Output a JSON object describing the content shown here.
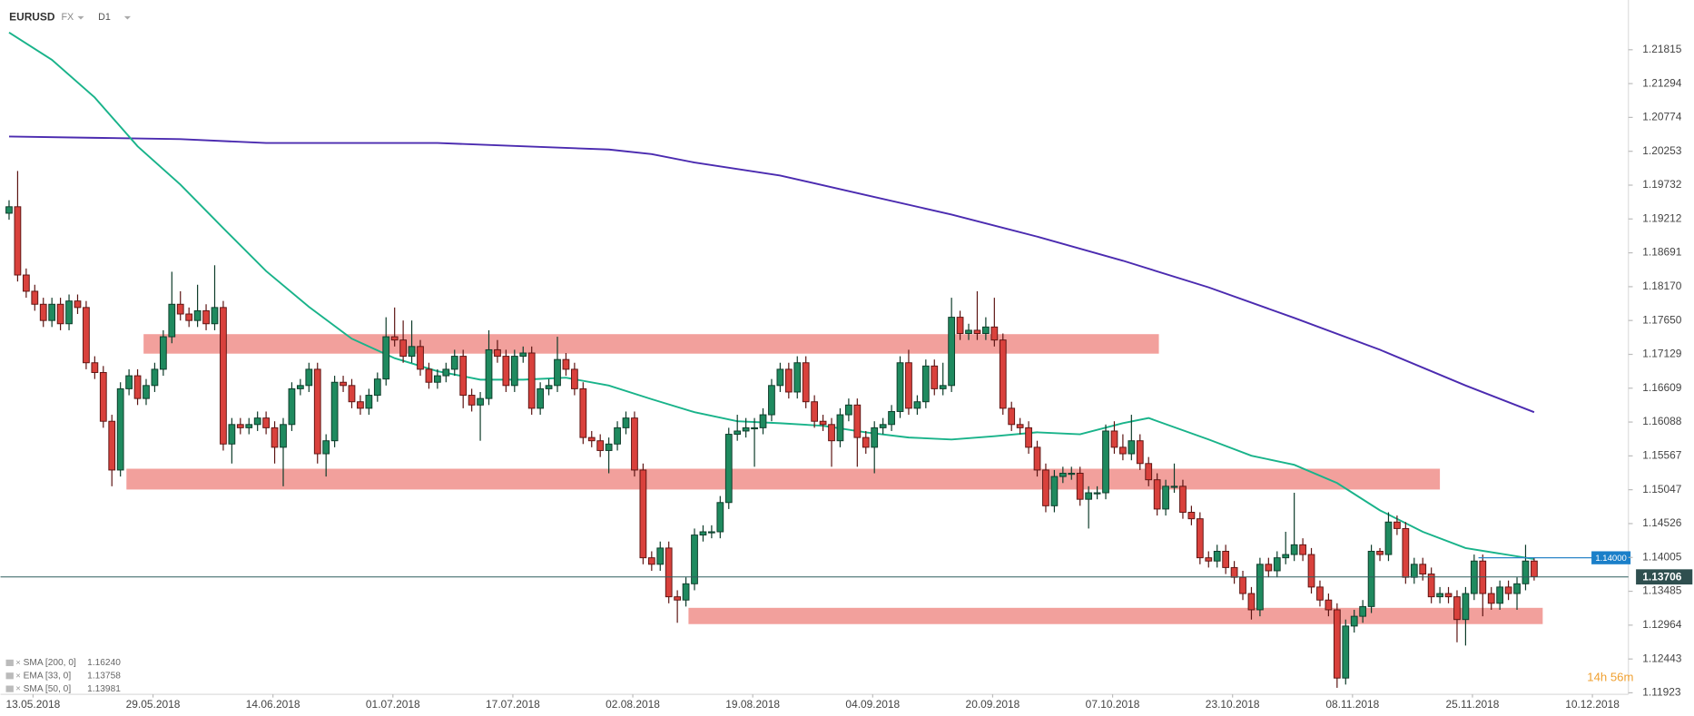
{
  "header": {
    "symbol": "EURUSD",
    "market": "FX",
    "interval": "D1"
  },
  "chart_data": {
    "type": "candlestick",
    "candles": [
      [
        1.193,
        1.195,
        1.192,
        1.194
      ],
      [
        1.194,
        1.1995,
        1.1825,
        1.1835
      ],
      [
        1.1835,
        1.1845,
        1.18,
        1.181
      ],
      [
        1.181,
        1.182,
        1.178,
        1.179
      ],
      [
        1.179,
        1.18,
        1.1755,
        1.1765
      ],
      [
        1.1765,
        1.18,
        1.1755,
        1.179
      ],
      [
        1.179,
        1.18,
        1.175,
        1.176
      ],
      [
        1.176,
        1.1805,
        1.175,
        1.1795
      ],
      [
        1.1795,
        1.1805,
        1.1775,
        1.1785
      ],
      [
        1.1785,
        1.1795,
        1.169,
        1.17
      ],
      [
        1.17,
        1.171,
        1.1675,
        1.1685
      ],
      [
        1.1685,
        1.1695,
        1.16,
        1.161
      ],
      [
        1.161,
        1.162,
        1.151,
        1.1535
      ],
      [
        1.1535,
        1.167,
        1.1525,
        1.166
      ],
      [
        1.166,
        1.169,
        1.165,
        1.168
      ],
      [
        1.168,
        1.169,
        1.1635,
        1.1645
      ],
      [
        1.1645,
        1.1675,
        1.1635,
        1.1665
      ],
      [
        1.1665,
        1.17,
        1.1655,
        1.169
      ],
      [
        1.169,
        1.175,
        1.168,
        1.174
      ],
      [
        1.174,
        1.184,
        1.173,
        1.179
      ],
      [
        1.179,
        1.181,
        1.1765,
        1.1775
      ],
      [
        1.1775,
        1.1785,
        1.1755,
        1.1765
      ],
      [
        1.1765,
        1.182,
        1.1755,
        1.178
      ],
      [
        1.178,
        1.179,
        1.175,
        1.176
      ],
      [
        1.176,
        1.185,
        1.175,
        1.1785
      ],
      [
        1.1785,
        1.1795,
        1.1565,
        1.1575
      ],
      [
        1.1575,
        1.1615,
        1.1545,
        1.1605
      ],
      [
        1.1605,
        1.1615,
        1.159,
        1.16
      ],
      [
        1.16,
        1.1615,
        1.159,
        1.1605
      ],
      [
        1.1605,
        1.1625,
        1.1595,
        1.1615
      ],
      [
        1.1615,
        1.1625,
        1.159,
        1.16
      ],
      [
        1.16,
        1.161,
        1.1545,
        1.157
      ],
      [
        1.157,
        1.1615,
        1.151,
        1.1605
      ],
      [
        1.1605,
        1.167,
        1.1595,
        1.166
      ],
      [
        1.166,
        1.1675,
        1.165,
        1.1665
      ],
      [
        1.1665,
        1.17,
        1.1655,
        1.169
      ],
      [
        1.169,
        1.17,
        1.1545,
        1.156
      ],
      [
        1.156,
        1.159,
        1.1525,
        1.158
      ],
      [
        1.158,
        1.168,
        1.157,
        1.167
      ],
      [
        1.167,
        1.168,
        1.1655,
        1.1665
      ],
      [
        1.1665,
        1.1675,
        1.163,
        1.164
      ],
      [
        1.164,
        1.165,
        1.162,
        1.163
      ],
      [
        1.163,
        1.166,
        1.162,
        1.165
      ],
      [
        1.165,
        1.1685,
        1.164,
        1.1675
      ],
      [
        1.1675,
        1.177,
        1.1665,
        1.174
      ],
      [
        1.174,
        1.1785,
        1.1725,
        1.1735
      ],
      [
        1.1735,
        1.1765,
        1.17,
        1.171
      ],
      [
        1.171,
        1.1765,
        1.17,
        1.1725
      ],
      [
        1.1725,
        1.1735,
        1.168,
        1.169
      ],
      [
        1.169,
        1.17,
        1.166,
        1.167
      ],
      [
        1.167,
        1.169,
        1.166,
        1.168
      ],
      [
        1.168,
        1.17,
        1.167,
        1.169
      ],
      [
        1.169,
        1.172,
        1.168,
        1.171
      ],
      [
        1.171,
        1.172,
        1.163,
        1.165
      ],
      [
        1.165,
        1.166,
        1.1625,
        1.1635
      ],
      [
        1.1635,
        1.1655,
        1.158,
        1.1645
      ],
      [
        1.1645,
        1.175,
        1.1635,
        1.172
      ],
      [
        1.172,
        1.1735,
        1.17,
        1.171
      ],
      [
        1.171,
        1.172,
        1.1655,
        1.1665
      ],
      [
        1.1665,
        1.172,
        1.1655,
        1.171
      ],
      [
        1.171,
        1.1725,
        1.17,
        1.1715
      ],
      [
        1.1715,
        1.1725,
        1.162,
        1.163
      ],
      [
        1.163,
        1.167,
        1.162,
        1.166
      ],
      [
        1.166,
        1.1675,
        1.165,
        1.1665
      ],
      [
        1.1665,
        1.174,
        1.1655,
        1.1705
      ],
      [
        1.1705,
        1.1715,
        1.168,
        1.169
      ],
      [
        1.169,
        1.17,
        1.165,
        1.166
      ],
      [
        1.166,
        1.167,
        1.1575,
        1.1585
      ],
      [
        1.1585,
        1.1595,
        1.157,
        1.158
      ],
      [
        1.158,
        1.159,
        1.1555,
        1.1565
      ],
      [
        1.1565,
        1.1585,
        1.153,
        1.1575
      ],
      [
        1.1575,
        1.161,
        1.1565,
        1.16
      ],
      [
        1.16,
        1.1625,
        1.159,
        1.1615
      ],
      [
        1.1615,
        1.1625,
        1.1525,
        1.1535
      ],
      [
        1.1535,
        1.1545,
        1.139,
        1.14
      ],
      [
        1.14,
        1.141,
        1.138,
        1.139
      ],
      [
        1.139,
        1.1425,
        1.138,
        1.1415
      ],
      [
        1.1415,
        1.1425,
        1.133,
        1.134
      ],
      [
        1.134,
        1.135,
        1.13,
        1.1335
      ],
      [
        1.1335,
        1.137,
        1.1325,
        1.136
      ],
      [
        1.136,
        1.1445,
        1.135,
        1.1435
      ],
      [
        1.1435,
        1.145,
        1.1425,
        1.144
      ],
      [
        1.144,
        1.145,
        1.143,
        1.144
      ],
      [
        1.144,
        1.1495,
        1.143,
        1.1485
      ],
      [
        1.1485,
        1.16,
        1.1475,
        1.159
      ],
      [
        1.159,
        1.162,
        1.158,
        1.1595
      ],
      [
        1.1595,
        1.1615,
        1.1585,
        1.16
      ],
      [
        1.16,
        1.1615,
        1.154,
        1.16
      ],
      [
        1.16,
        1.163,
        1.159,
        1.162
      ],
      [
        1.162,
        1.1675,
        1.161,
        1.1665
      ],
      [
        1.1665,
        1.17,
        1.1655,
        1.169
      ],
      [
        1.169,
        1.17,
        1.1645,
        1.1655
      ],
      [
        1.1655,
        1.171,
        1.1645,
        1.17
      ],
      [
        1.17,
        1.171,
        1.163,
        1.164
      ],
      [
        1.164,
        1.165,
        1.16,
        1.161
      ],
      [
        1.161,
        1.162,
        1.1595,
        1.1605
      ],
      [
        1.1605,
        1.1615,
        1.154,
        1.158
      ],
      [
        1.158,
        1.163,
        1.157,
        1.162
      ],
      [
        1.162,
        1.1645,
        1.161,
        1.1635
      ],
      [
        1.1635,
        1.1645,
        1.154,
        1.1585
      ],
      [
        1.1585,
        1.1595,
        1.156,
        1.157
      ],
      [
        1.157,
        1.161,
        1.153,
        1.16
      ],
      [
        1.16,
        1.1615,
        1.159,
        1.1605
      ],
      [
        1.1605,
        1.1635,
        1.1595,
        1.1625
      ],
      [
        1.1625,
        1.171,
        1.1615,
        1.17
      ],
      [
        1.17,
        1.172,
        1.162,
        1.163
      ],
      [
        1.163,
        1.165,
        1.162,
        1.164
      ],
      [
        1.164,
        1.1705,
        1.163,
        1.1695
      ],
      [
        1.1695,
        1.1705,
        1.165,
        1.166
      ],
      [
        1.166,
        1.17,
        1.165,
        1.1665
      ],
      [
        1.1665,
        1.18,
        1.1655,
        1.177
      ],
      [
        1.177,
        1.178,
        1.1735,
        1.1745
      ],
      [
        1.1745,
        1.176,
        1.1735,
        1.175
      ],
      [
        1.175,
        1.181,
        1.1735,
        1.1745
      ],
      [
        1.1745,
        1.177,
        1.1735,
        1.1755
      ],
      [
        1.1755,
        1.18,
        1.1725,
        1.1735
      ],
      [
        1.1735,
        1.1745,
        1.162,
        1.163
      ],
      [
        1.163,
        1.164,
        1.1595,
        1.1605
      ],
      [
        1.1605,
        1.1615,
        1.159,
        1.16
      ],
      [
        1.16,
        1.161,
        1.156,
        1.157
      ],
      [
        1.157,
        1.158,
        1.1525,
        1.1535
      ],
      [
        1.1535,
        1.1545,
        1.147,
        1.148
      ],
      [
        1.148,
        1.1535,
        1.147,
        1.1525
      ],
      [
        1.1525,
        1.154,
        1.1515,
        1.153
      ],
      [
        1.153,
        1.154,
        1.152,
        1.153
      ],
      [
        1.153,
        1.154,
        1.148,
        1.149
      ],
      [
        1.149,
        1.151,
        1.1445,
        1.15
      ],
      [
        1.15,
        1.151,
        1.149,
        1.15
      ],
      [
        1.15,
        1.1605,
        1.149,
        1.1595
      ],
      [
        1.1595,
        1.161,
        1.156,
        1.157
      ],
      [
        1.157,
        1.159,
        1.155,
        1.156
      ],
      [
        1.156,
        1.162,
        1.155,
        1.158
      ],
      [
        1.158,
        1.159,
        1.1535,
        1.1545
      ],
      [
        1.1545,
        1.1555,
        1.151,
        1.152
      ],
      [
        1.152,
        1.153,
        1.1465,
        1.1475
      ],
      [
        1.1475,
        1.152,
        1.1465,
        1.151
      ],
      [
        1.151,
        1.1545,
        1.15,
        1.151
      ],
      [
        1.151,
        1.152,
        1.146,
        1.147
      ],
      [
        1.147,
        1.148,
        1.145,
        1.146
      ],
      [
        1.146,
        1.147,
        1.139,
        1.14
      ],
      [
        1.14,
        1.141,
        1.1385,
        1.1395
      ],
      [
        1.1395,
        1.142,
        1.1385,
        1.141
      ],
      [
        1.141,
        1.142,
        1.1375,
        1.1385
      ],
      [
        1.1385,
        1.1395,
        1.136,
        1.137
      ],
      [
        1.137,
        1.138,
        1.1335,
        1.1345
      ],
      [
        1.1345,
        1.1355,
        1.1305,
        1.132
      ],
      [
        1.132,
        1.14,
        1.131,
        1.139
      ],
      [
        1.139,
        1.14,
        1.137,
        1.138
      ],
      [
        1.138,
        1.141,
        1.137,
        1.14
      ],
      [
        1.14,
        1.144,
        1.139,
        1.1405
      ],
      [
        1.1405,
        1.15,
        1.1395,
        1.142
      ],
      [
        1.142,
        1.143,
        1.1395,
        1.1405
      ],
      [
        1.1405,
        1.1415,
        1.1345,
        1.1355
      ],
      [
        1.1355,
        1.1365,
        1.1325,
        1.1335
      ],
      [
        1.1335,
        1.1345,
        1.131,
        1.132
      ],
      [
        1.132,
        1.133,
        1.12,
        1.1215
      ],
      [
        1.1215,
        1.1305,
        1.1205,
        1.1295
      ],
      [
        1.1295,
        1.132,
        1.1285,
        1.131
      ],
      [
        1.131,
        1.1335,
        1.13,
        1.1325
      ],
      [
        1.1325,
        1.142,
        1.1315,
        1.141
      ],
      [
        1.141,
        1.1415,
        1.1395,
        1.1405
      ],
      [
        1.1405,
        1.147,
        1.1395,
        1.1455
      ],
      [
        1.1455,
        1.1465,
        1.1435,
        1.1445
      ],
      [
        1.1445,
        1.1455,
        1.136,
        1.137
      ],
      [
        1.137,
        1.14,
        1.136,
        1.139
      ],
      [
        1.139,
        1.14,
        1.1365,
        1.1375
      ],
      [
        1.1375,
        1.1385,
        1.133,
        1.134
      ],
      [
        1.134,
        1.1355,
        1.133,
        1.1345
      ],
      [
        1.1345,
        1.1355,
        1.133,
        1.134
      ],
      [
        1.134,
        1.135,
        1.127,
        1.1305
      ],
      [
        1.1305,
        1.1355,
        1.1265,
        1.1345
      ],
      [
        1.1345,
        1.1405,
        1.1335,
        1.1395
      ],
      [
        1.1395,
        1.1405,
        1.131,
        1.1345
      ],
      [
        1.1345,
        1.1355,
        1.132,
        1.133
      ],
      [
        1.133,
        1.1365,
        1.132,
        1.1355
      ],
      [
        1.1355,
        1.1365,
        1.1335,
        1.1345
      ],
      [
        1.1345,
        1.137,
        1.132,
        1.136
      ],
      [
        1.136,
        1.142,
        1.135,
        1.1395
      ],
      [
        1.1395,
        1.14,
        1.1365,
        1.1371
      ]
    ],
    "up_color": "#1f8a5f",
    "down_color": "#d9413c",
    "series": [
      {
        "name": "SMA [200, 0]",
        "last": "1.16240",
        "color": "#4b2bb0",
        "x": [
          0,
          10,
          20,
          30,
          40,
          50,
          60,
          70,
          75,
          80,
          90,
          100,
          110,
          120,
          130,
          140,
          150,
          160,
          170,
          178
        ],
        "values": [
          1.2048,
          1.2046,
          1.2044,
          1.2038,
          1.2038,
          1.2038,
          1.2033,
          1.2028,
          1.2021,
          1.2008,
          1.1988,
          1.1958,
          1.1928,
          1.1894,
          1.1857,
          1.1816,
          1.1769,
          1.172,
          1.1665,
          1.1624
        ]
      },
      {
        "name": "EMA [33, 0]",
        "last": "1.13758"
      },
      {
        "name": "SMA [50, 0]",
        "last": "1.13981",
        "color": "#19b38a",
        "x": [
          0,
          5,
          10,
          15,
          20,
          25,
          30,
          35,
          40,
          45,
          50,
          55,
          60,
          65,
          70,
          75,
          80,
          85,
          90,
          95,
          100,
          105,
          110,
          115,
          120,
          125,
          130,
          133,
          140,
          145,
          150,
          155,
          160,
          165,
          170,
          178
        ],
        "values": [
          1.2208,
          1.2166,
          1.2108,
          1.2033,
          1.1974,
          1.1907,
          1.1841,
          1.1786,
          1.1737,
          1.1707,
          1.1687,
          1.1674,
          1.1674,
          1.1677,
          1.1665,
          1.1644,
          1.1624,
          1.161,
          1.1607,
          1.1603,
          1.1593,
          1.1585,
          1.1582,
          1.1587,
          1.1593,
          1.159,
          1.1607,
          1.1615,
          1.1582,
          1.1557,
          1.1543,
          1.1515,
          1.1473,
          1.144,
          1.1415,
          1.1398
        ]
      }
    ],
    "zones": [
      {
        "x": [
          15.7,
          134.2
        ],
        "y": [
          1.1714,
          1.1744
        ]
      },
      {
        "x": [
          13.7,
          167.0
        ],
        "y": [
          1.1505,
          1.1537
        ]
      },
      {
        "x": [
          79.3,
          179.0
        ],
        "y": [
          1.1298,
          1.1323
        ]
      }
    ],
    "zone_color": "#f2a09c",
    "last_price": 1.13706,
    "alert": {
      "value": 1.14,
      "label": "1.14000"
    },
    "xlim": [
      -1,
      189
    ],
    "xticks": [
      {
        "value": 2.8,
        "label": "13.05.2018"
      },
      {
        "value": 16.8,
        "label": "29.05.2018"
      },
      {
        "value": 30.8,
        "label": "14.06.2018"
      },
      {
        "value": 44.8,
        "label": "01.07.2018"
      },
      {
        "value": 58.8,
        "label": "17.07.2018"
      },
      {
        "value": 72.8,
        "label": "02.08.2018"
      },
      {
        "value": 86.8,
        "label": "19.08.2018"
      },
      {
        "value": 100.8,
        "label": "04.09.2018"
      },
      {
        "value": 114.8,
        "label": "20.09.2018"
      },
      {
        "value": 128.8,
        "label": "07.10.2018"
      },
      {
        "value": 142.8,
        "label": "23.10.2018"
      },
      {
        "value": 156.8,
        "label": "08.11.2018"
      },
      {
        "value": 170.8,
        "label": "25.11.2018"
      },
      {
        "value": 184.8,
        "label": "10.12.2018"
      }
    ],
    "ylim": [
      1.119,
      1.2258
    ],
    "yticks": [
      1.21815,
      1.21294,
      1.20774,
      1.20253,
      1.19732,
      1.19212,
      1.18691,
      {
        "value": 1.1817,
        "label": "1.18170"
      },
      {
        "value": 1.1765,
        "label": "1.17650"
      },
      1.17129,
      1.16609,
      1.16088,
      1.15567,
      1.15047,
      1.14526,
      1.14005,
      1.13485,
      1.12964,
      1.12443,
      1.11923
    ],
    "countdown": "14h 56m"
  }
}
